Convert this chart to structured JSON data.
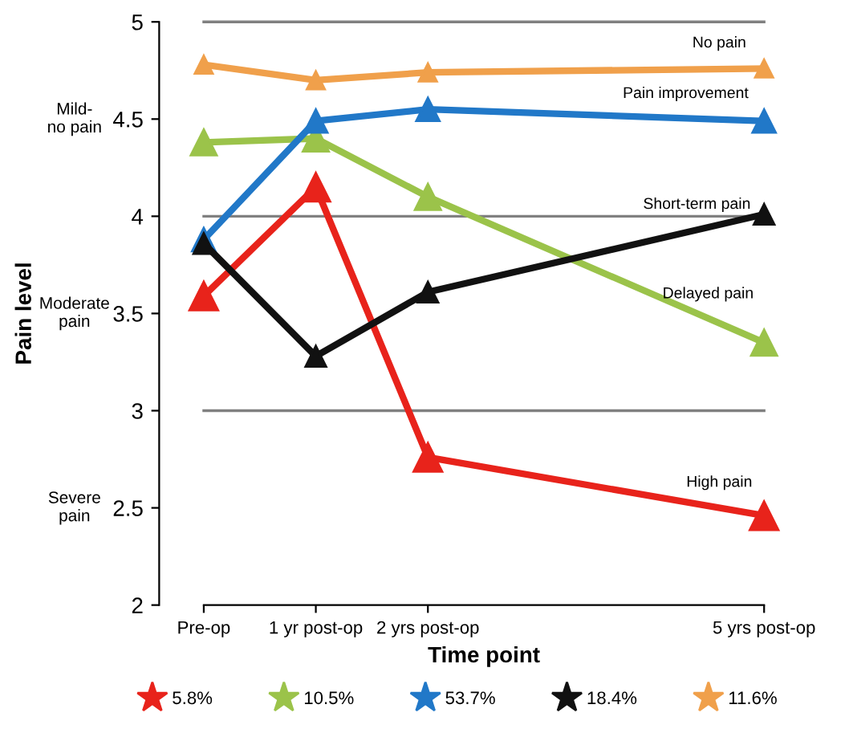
{
  "chart_data": {
    "type": "line",
    "xlabel": "Time point",
    "ylabel": "Pain level",
    "x": [
      0,
      1,
      2,
      5
    ],
    "xlim": [
      0,
      5
    ],
    "xticks": [
      {
        "value": 0,
        "label": "Pre-op"
      },
      {
        "value": 1,
        "label": "1 yr post-op"
      },
      {
        "value": 2,
        "label": "2 yrs post-op"
      },
      {
        "value": 5,
        "label": "5 yrs post-op"
      }
    ],
    "ylim": [
      2,
      5
    ],
    "yticks": [
      2,
      2.5,
      3,
      3.5,
      4,
      4.5,
      5
    ],
    "marker": "triangle",
    "legend": "bottom",
    "grid": false,
    "ref_lines": [
      {
        "axis": "y",
        "value": 4,
        "color": "#808080"
      },
      {
        "axis": "y",
        "value": 3,
        "color": "#808080"
      }
    ],
    "series": [
      {
        "name": "5.8%",
        "color": "#e8231b",
        "values": [
          3.59,
          4.15,
          2.76,
          2.46
        ]
      },
      {
        "name": "10.5%",
        "color": "#9bc34a",
        "values": [
          4.38,
          4.4,
          4.1,
          3.35
        ]
      },
      {
        "name": "53.7%",
        "color": "#2178c8",
        "values": [
          3.88,
          4.49,
          4.55,
          4.49
        ]
      },
      {
        "name": "18.4%",
        "color": "#111111",
        "values": [
          3.86,
          3.28,
          3.61,
          4.01
        ]
      },
      {
        "name": "11.6%",
        "color": "#f0a04b",
        "values": [
          4.78,
          4.7,
          4.74,
          4.76
        ]
      }
    ],
    "annotations": [
      "Mild-\nno pain",
      "Moderate\npain",
      "Severe\npain",
      {
        "text": "No pain",
        "x": 4.6,
        "y": 4.76
      },
      {
        "text": "Pain improvement",
        "x": 4.3,
        "y": 4.5
      },
      {
        "text": "Short-term pain",
        "x": 4.4,
        "y": 3.93
      },
      {
        "text": "Delayed pain",
        "x": 4.5,
        "y": 3.47
      },
      {
        "text": "High pain",
        "x": 4.6,
        "y": 2.5
      }
    ]
  }
}
